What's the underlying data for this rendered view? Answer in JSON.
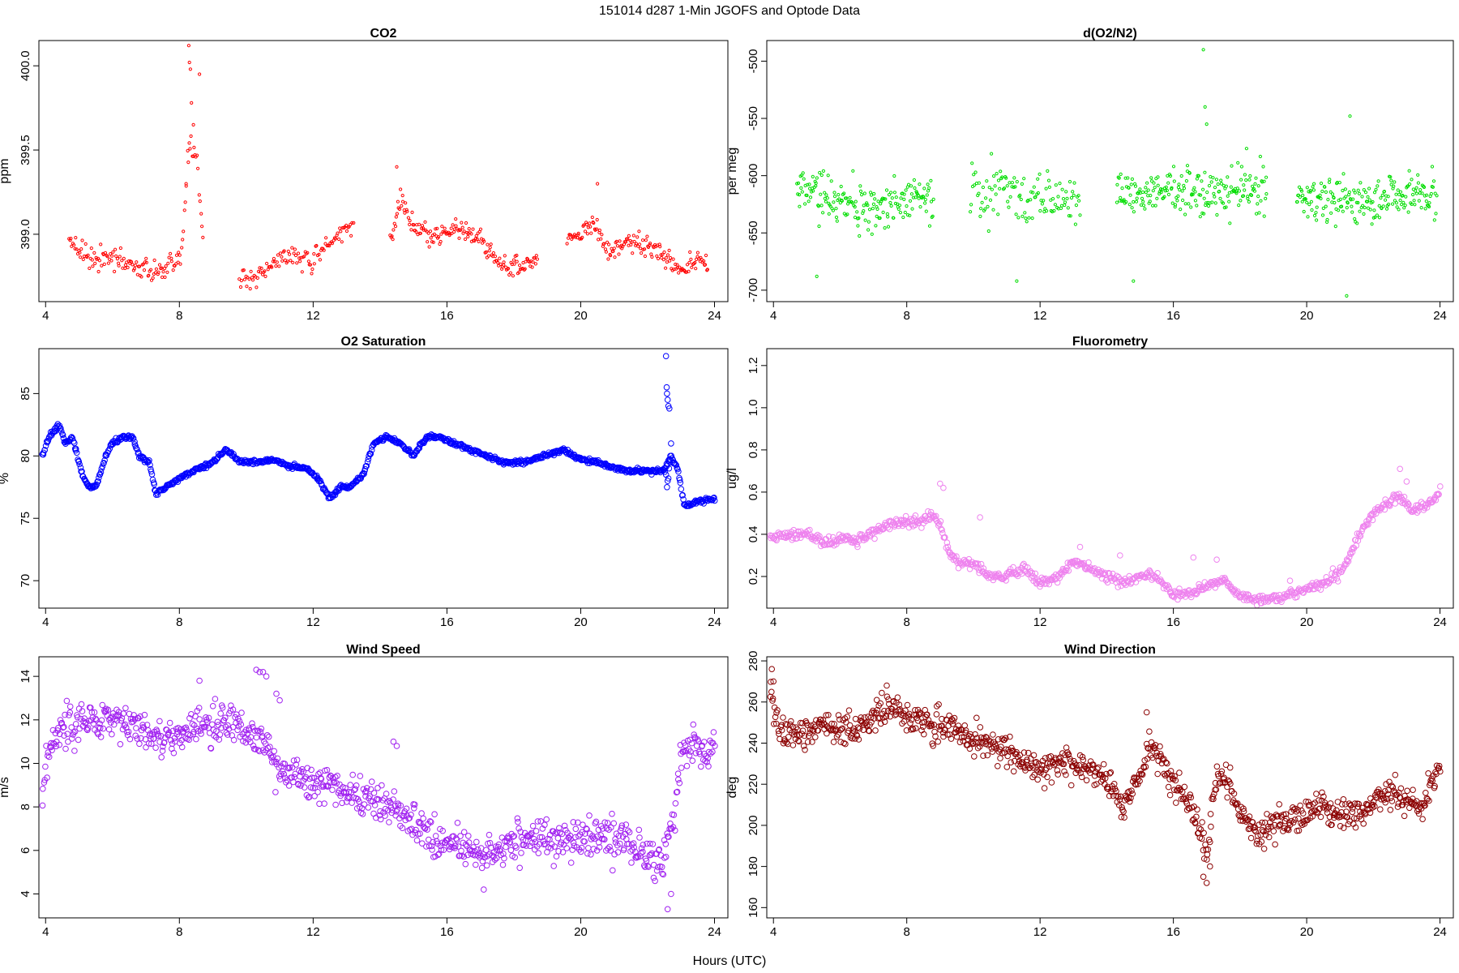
{
  "figure": {
    "title": "151014   d287   1-Min  JGOFS and Optode Data",
    "xlabel": "Hours (UTC)"
  },
  "chart_data": [
    {
      "type": "scatter",
      "title": "CO2",
      "ylabel": "ppm",
      "color": "#ff0000",
      "xlim": [
        3.8,
        24.4
      ],
      "ylim": [
        398.6,
        400.15
      ],
      "xticks": [
        4,
        8,
        12,
        16,
        20,
        24
      ],
      "yticks": [
        399.0,
        399.5,
        400.0
      ],
      "ytick_labels": [
        "399.0",
        "399.5",
        "400.0"
      ],
      "point_size": 1.6,
      "segments": [
        {
          "x": [
            4.7,
            5.3,
            6.0,
            6.8,
            7.5,
            7.9,
            8.1,
            8.3,
            8.5,
            8.7
          ],
          "y": [
            398.98,
            398.88,
            398.85,
            398.8,
            398.78,
            398.8,
            398.96,
            399.55,
            399.5,
            399.0
          ],
          "noise": 0.06,
          "n": 140
        },
        {
          "x": [
            9.8,
            10.3,
            11.0,
            11.5,
            11.9,
            12.4,
            12.7,
            13.2
          ],
          "y": [
            398.72,
            398.75,
            398.85,
            398.88,
            398.82,
            398.9,
            399.0,
            399.05
          ],
          "noise": 0.05,
          "n": 110
        },
        {
          "x": [
            14.3,
            14.6,
            15.0,
            15.6,
            16.3,
            17.0,
            17.6,
            18.2,
            18.7
          ],
          "y": [
            398.95,
            399.2,
            399.05,
            398.98,
            399.04,
            398.97,
            398.82,
            398.8,
            398.85
          ],
          "noise": 0.05,
          "n": 170
        },
        {
          "x": [
            19.6,
            20.0,
            20.4,
            20.8,
            21.5,
            22.3,
            22.9,
            23.4,
            23.8
          ],
          "y": [
            398.98,
            399.0,
            399.08,
            398.9,
            398.95,
            398.92,
            398.78,
            398.85,
            398.84
          ],
          "noise": 0.05,
          "n": 160
        }
      ],
      "extra_points": {
        "x": [
          8.28,
          8.3,
          8.33,
          8.36,
          8.42,
          8.6,
          8.2,
          14.5,
          20.5
        ],
        "y": [
          400.12,
          400.02,
          399.98,
          399.78,
          399.65,
          399.95,
          399.3,
          399.4,
          399.3
        ]
      }
    },
    {
      "type": "scatter",
      "title": "d(O2/N2)",
      "ylabel": "per meg",
      "color": "#00dd00",
      "xlim": [
        3.8,
        24.4
      ],
      "ylim": [
        -710,
        -482
      ],
      "xticks": [
        4,
        8,
        12,
        16,
        20,
        24
      ],
      "yticks": [
        -700,
        -650,
        -600,
        -550,
        -500
      ],
      "ytick_labels": [
        "-700",
        "-650",
        "-600",
        "-550",
        "-500"
      ],
      "point_size": 1.6,
      "segments": [
        {
          "x": [
            4.7,
            5.5,
            6.5,
            7.5,
            8.2,
            8.8
          ],
          "y": [
            -605,
            -622,
            -628,
            -625,
            -618,
            -620
          ],
          "noise": 18,
          "n": 190
        },
        {
          "x": [
            9.9,
            10.8,
            11.6,
            12.2,
            13.2
          ],
          "y": [
            -618,
            -612,
            -620,
            -618,
            -622
          ],
          "noise": 17,
          "n": 120
        },
        {
          "x": [
            14.3,
            15.2,
            16.2,
            17.2,
            18.1,
            18.8
          ],
          "y": [
            -610,
            -617,
            -612,
            -618,
            -610,
            -612
          ],
          "noise": 17,
          "n": 210
        },
        {
          "x": [
            19.7,
            20.6,
            21.6,
            22.6,
            23.3,
            23.9
          ],
          "y": [
            -618,
            -620,
            -622,
            -618,
            -615,
            -618
          ],
          "noise": 16,
          "n": 200
        }
      ],
      "extra_points": {
        "x": [
          16.9,
          16.95,
          17.0,
          21.2,
          21.3,
          11.3,
          5.3,
          14.8
        ],
        "y": [
          -490,
          -540,
          -555,
          -705,
          -548,
          -692,
          -688,
          -692
        ]
      }
    },
    {
      "type": "scatter",
      "title": "O2 Saturation",
      "ylabel": "%",
      "color": "#0000ff",
      "xlim": [
        3.8,
        24.4
      ],
      "ylim": [
        67.8,
        88.6
      ],
      "xticks": [
        4,
        8,
        12,
        16,
        20,
        24
      ],
      "yticks": [
        70,
        75,
        80,
        85
      ],
      "ytick_labels": [
        "70",
        "75",
        "80",
        "85"
      ],
      "point_size": 3.3,
      "segments": [
        {
          "x": [
            3.9,
            4.1,
            4.4,
            4.6,
            4.8,
            5.1,
            5.3,
            5.5,
            5.8,
            6.0,
            6.3,
            6.6,
            6.8,
            7.1,
            7.3,
            7.6,
            7.9,
            8.2,
            8.6,
            9.0,
            9.4,
            9.8,
            10.3,
            10.8,
            11.3,
            11.8,
            12.2,
            12.5,
            12.8,
            13.1,
            13.5,
            13.8,
            14.2,
            14.6,
            15.0,
            15.4,
            15.8,
            16.2,
            16.7,
            17.2,
            17.7,
            18.3,
            18.9,
            19.5,
            20.0,
            20.5,
            21.0,
            21.5,
            22.0,
            22.5,
            22.7,
            22.9,
            23.1,
            23.4,
            23.7,
            24.0
          ],
          "y": [
            80.0,
            81.5,
            82.5,
            81.0,
            81.5,
            78.5,
            77.5,
            77.5,
            80.0,
            81.0,
            81.5,
            81.5,
            80.0,
            79.5,
            77.0,
            77.5,
            78.0,
            78.5,
            79.0,
            79.5,
            80.5,
            79.5,
            79.5,
            79.7,
            79.2,
            79.0,
            78.0,
            76.5,
            77.5,
            77.5,
            78.5,
            81.0,
            81.5,
            81.0,
            80.0,
            81.5,
            81.5,
            81.0,
            80.5,
            80.0,
            79.5,
            79.5,
            80.0,
            80.5,
            79.7,
            79.5,
            79.0,
            78.8,
            78.8,
            78.8,
            80.0,
            79.0,
            76.0,
            76.2,
            76.5,
            76.5
          ],
          "noise": 0.15,
          "n": 950
        }
      ],
      "extra_points": {
        "x": [
          22.55,
          22.57,
          22.58,
          22.6,
          22.62,
          22.65,
          22.7,
          22.55,
          22.6,
          22.58,
          22.62,
          22.64,
          22.66,
          22.68
        ],
        "y": [
          88.0,
          85.5,
          85.0,
          84.5,
          84.0,
          83.8,
          81.0,
          78.5,
          78.0,
          77.5,
          78.2,
          79.0,
          79.5,
          80.0
        ]
      }
    },
    {
      "type": "scatter",
      "title": "Fluorometry",
      "ylabel": "ug/l",
      "color": "#ee82ee",
      "xlim": [
        3.8,
        24.4
      ],
      "ylim": [
        0.05,
        1.28
      ],
      "xticks": [
        4,
        8,
        12,
        16,
        20,
        24
      ],
      "yticks": [
        0.2,
        0.4,
        0.6,
        0.8,
        1.0,
        1.2
      ],
      "ytick_labels": [
        "0.2",
        "0.4",
        "0.6",
        "0.8",
        "1.0",
        "1.2"
      ],
      "point_size": 3.3,
      "segments": [
        {
          "x": [
            3.9,
            4.5,
            5.0,
            5.5,
            6.0,
            6.5,
            7.0,
            7.5,
            8.0,
            8.5,
            8.8,
            9.0,
            9.3,
            9.6,
            10.0,
            10.5,
            11.0,
            11.5,
            12.0,
            12.5,
            13.0,
            13.5,
            14.0,
            14.5,
            15.0,
            15.5,
            16.0,
            16.5,
            17.0,
            17.5,
            18.0,
            18.5,
            19.0,
            19.5,
            20.0,
            20.5,
            21.0,
            21.3,
            21.6,
            22.0,
            22.4,
            22.8,
            23.2,
            23.6,
            24.0
          ],
          "y": [
            0.39,
            0.4,
            0.41,
            0.36,
            0.38,
            0.37,
            0.41,
            0.45,
            0.46,
            0.47,
            0.49,
            0.45,
            0.3,
            0.27,
            0.26,
            0.2,
            0.2,
            0.24,
            0.17,
            0.2,
            0.27,
            0.24,
            0.2,
            0.17,
            0.2,
            0.2,
            0.12,
            0.12,
            0.16,
            0.18,
            0.11,
            0.09,
            0.1,
            0.11,
            0.14,
            0.17,
            0.22,
            0.3,
            0.4,
            0.5,
            0.55,
            0.58,
            0.51,
            0.53,
            0.6
          ],
          "noise": 0.02,
          "n": 820
        }
      ],
      "extra_points": {
        "x": [
          9.0,
          9.1,
          10.2,
          13.2,
          16.6,
          17.3,
          22.8,
          23.0,
          14.4,
          19.5
        ],
        "y": [
          0.64,
          0.62,
          0.48,
          0.34,
          0.29,
          0.28,
          0.71,
          0.65,
          0.3,
          0.18
        ]
      }
    },
    {
      "type": "scatter",
      "title": "Wind Speed",
      "ylabel": "m/s",
      "color": "#a020f0",
      "xlim": [
        3.8,
        24.4
      ],
      "ylim": [
        2.9,
        14.9
      ],
      "xticks": [
        4,
        8,
        12,
        16,
        20,
        24
      ],
      "yticks": [
        4,
        6,
        8,
        10,
        12,
        14
      ],
      "ytick_labels": [
        "4",
        "6",
        "8",
        "10",
        "12",
        "14"
      ],
      "point_size": 3.3,
      "segments": [
        {
          "x": [
            3.9,
            4.1,
            4.5,
            5.0,
            5.5,
            6.0,
            6.5,
            7.0,
            7.5,
            8.0,
            8.5,
            9.0,
            9.5,
            10.0,
            10.5,
            10.8,
            11.0,
            11.5,
            12.0,
            12.5,
            13.0,
            13.5,
            14.0,
            14.5,
            15.0,
            15.5,
            16.0,
            16.5,
            17.0,
            17.5,
            18.0,
            18.5,
            19.0,
            19.5,
            20.0,
            20.5,
            21.0,
            21.5,
            22.0,
            22.5,
            22.8,
            23.0,
            23.3,
            23.7,
            24.0
          ],
          "y": [
            8.5,
            11.0,
            11.5,
            11.8,
            12.0,
            12.1,
            11.7,
            11.5,
            11.0,
            11.2,
            11.8,
            11.5,
            12.0,
            11.5,
            11.0,
            10.5,
            9.5,
            9.5,
            9.0,
            9.0,
            8.5,
            8.5,
            8.3,
            8.0,
            7.5,
            6.5,
            6.3,
            6.2,
            6.0,
            6.0,
            6.3,
            6.8,
            6.5,
            6.5,
            6.5,
            6.5,
            6.5,
            6.3,
            5.8,
            5.5,
            8.0,
            10.5,
            11.0,
            10.5,
            10.8
          ],
          "noise": 0.75,
          "n": 880
        }
      ],
      "extra_points": {
        "x": [
          10.3,
          10.4,
          10.5,
          10.6,
          10.9,
          11.0,
          8.6,
          22.6,
          22.7,
          14.4,
          14.5,
          17.1
        ],
        "y": [
          14.3,
          14.2,
          14.2,
          14.0,
          13.2,
          12.9,
          13.8,
          3.3,
          4.0,
          11.0,
          10.8,
          4.2
        ]
      }
    },
    {
      "type": "scatter",
      "title": "Wind Direction",
      "ylabel": "deg",
      "color": "#8b0000",
      "xlim": [
        3.8,
        24.4
      ],
      "ylim": [
        155,
        282
      ],
      "xticks": [
        4,
        8,
        12,
        16,
        20,
        24
      ],
      "yticks": [
        160,
        180,
        200,
        220,
        240,
        260,
        280
      ],
      "ytick_labels": [
        "160",
        "180",
        "200",
        "220",
        "240",
        "260",
        "280"
      ],
      "point_size": 3.3,
      "segments": [
        {
          "x": [
            3.9,
            4.1,
            4.5,
            5.0,
            5.5,
            6.0,
            6.5,
            7.0,
            7.5,
            8.0,
            8.5,
            9.0,
            9.5,
            10.0,
            10.5,
            11.0,
            11.5,
            12.0,
            12.5,
            13.0,
            13.5,
            14.0,
            14.5,
            15.0,
            15.3,
            15.7,
            16.0,
            16.5,
            16.8,
            17.0,
            17.3,
            17.6,
            18.0,
            18.5,
            19.0,
            19.5,
            20.0,
            20.5,
            21.0,
            21.5,
            22.0,
            22.5,
            23.0,
            23.5,
            24.0
          ],
          "y": [
            268.0,
            250.0,
            246.0,
            245.0,
            247.0,
            247.0,
            247.0,
            252.0,
            258.0,
            252.0,
            250.0,
            248.0,
            246.0,
            242.0,
            240.0,
            235.0,
            230.0,
            228.0,
            230.0,
            230.0,
            227.0,
            222.0,
            210.0,
            225.0,
            240.0,
            230.0,
            220.0,
            210.0,
            198.0,
            185.0,
            225.0,
            222.0,
            208.0,
            195.0,
            200.0,
            203.0,
            205.0,
            210.0,
            205.0,
            205.0,
            212.0,
            215.0,
            212.0,
            210.0,
            228.0
          ],
          "noise": 6.0,
          "n": 900
        }
      ],
      "extra_points": {
        "x": [
          3.95,
          4.0,
          16.9,
          17.0,
          17.1,
          15.2,
          7.4
        ],
        "y": [
          276.0,
          270.0,
          175.0,
          172.0,
          180.0,
          255.0,
          268.0
        ]
      }
    }
  ]
}
